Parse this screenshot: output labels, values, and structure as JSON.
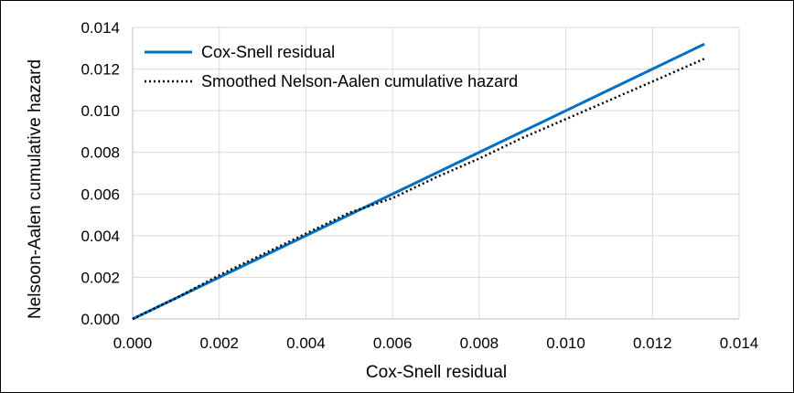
{
  "chart_data": {
    "type": "line",
    "title": "",
    "xlabel": "Cox-Snell residual",
    "ylabel": "Nelsoon-Aalen cumulative hazard",
    "xlim": [
      0,
      0.014
    ],
    "ylim": [
      0,
      0.014
    ],
    "x_ticks": [
      "0.000",
      "0.002",
      "0.004",
      "0.006",
      "0.008",
      "0.010",
      "0.012",
      "0.014"
    ],
    "y_ticks": [
      "0.000",
      "0.002",
      "0.004",
      "0.006",
      "0.008",
      "0.010",
      "0.012",
      "0.014"
    ],
    "grid": true,
    "legend_position": "top-left",
    "series": [
      {
        "name": "Cox-Snell residual",
        "color": "#0070C0",
        "style": "solid",
        "points": [
          [
            0,
            0
          ],
          [
            0.0132,
            0.0132
          ]
        ]
      },
      {
        "name": "Smoothed Nelson-Aalen cumulative hazard",
        "color": "#000000",
        "style": "dotted",
        "points": [
          [
            0,
            0
          ],
          [
            0.0005,
            0.0005
          ],
          [
            0.001,
            0.001
          ],
          [
            0.002,
            0.0021
          ],
          [
            0.003,
            0.0031
          ],
          [
            0.004,
            0.0041
          ],
          [
            0.005,
            0.0051
          ],
          [
            0.006,
            0.0058
          ],
          [
            0.007,
            0.0068
          ],
          [
            0.008,
            0.0077
          ],
          [
            0.009,
            0.0087
          ],
          [
            0.01,
            0.0096
          ],
          [
            0.011,
            0.0105
          ],
          [
            0.012,
            0.0114
          ],
          [
            0.0132,
            0.0125
          ]
        ]
      }
    ]
  }
}
